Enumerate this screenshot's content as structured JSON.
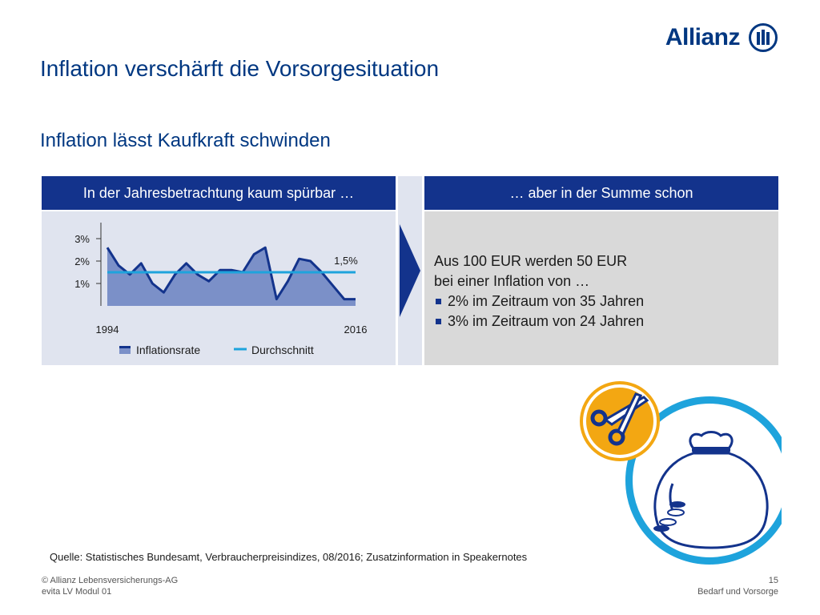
{
  "brand": {
    "name": "Allianz"
  },
  "title": "Inflation verschärft die Vorsorgesituation",
  "subtitle": "Inflation lässt Kaufkraft schwinden",
  "left_panel": {
    "header": "In der Jahresbetrachtung kaum spürbar …"
  },
  "right_panel": {
    "header": "… aber in der Summe schon",
    "line1": "Aus 100 EUR werden 50 EUR",
    "line2": "bei einer Inflation von …",
    "bullets": [
      "2% im Zeitraum von 35 Jahren",
      "3% im Zeitraum von 24 Jahren"
    ]
  },
  "chart_data": {
    "type": "area",
    "x": [
      1994,
      1995,
      1996,
      1997,
      1998,
      1999,
      2000,
      2001,
      2002,
      2003,
      2004,
      2005,
      2006,
      2007,
      2008,
      2009,
      2010,
      2011,
      2012,
      2013,
      2014,
      2015,
      2016
    ],
    "x_tick_labels": [
      "1994",
      "2016"
    ],
    "y_ticks": [
      1,
      2,
      3
    ],
    "y_tick_labels": [
      "1%",
      "2%",
      "3%"
    ],
    "ylim": [
      0,
      3.5
    ],
    "series": [
      {
        "name": "Inflationsrate",
        "type": "area",
        "color": "#13338c",
        "fill": "#7b90c8",
        "values": [
          2.6,
          1.8,
          1.4,
          1.9,
          1.0,
          0.6,
          1.4,
          1.9,
          1.4,
          1.1,
          1.6,
          1.6,
          1.5,
          2.3,
          2.6,
          0.3,
          1.1,
          2.1,
          2.0,
          1.5,
          0.9,
          0.3,
          0.3
        ]
      },
      {
        "name": "Durchschnitt",
        "type": "line",
        "color": "#1ea3dc",
        "value": 1.5
      }
    ],
    "annotation": "1,5%",
    "legend_position": "bottom"
  },
  "source": "Quelle: Statistisches Bundesamt, Verbraucherpreisindizes, 08/2016; Zusatzinformation in Speakernotes",
  "footer": {
    "copyright": "© Allianz Lebensversicherungs-AG",
    "module": "evita LV Modul 01",
    "page": "15",
    "section": "Bedarf und Vorsorge"
  },
  "colors": {
    "primary": "#003781",
    "header_blue": "#13338c",
    "accent": "#1ea3dc",
    "scissors_circle": "#f3a712"
  }
}
